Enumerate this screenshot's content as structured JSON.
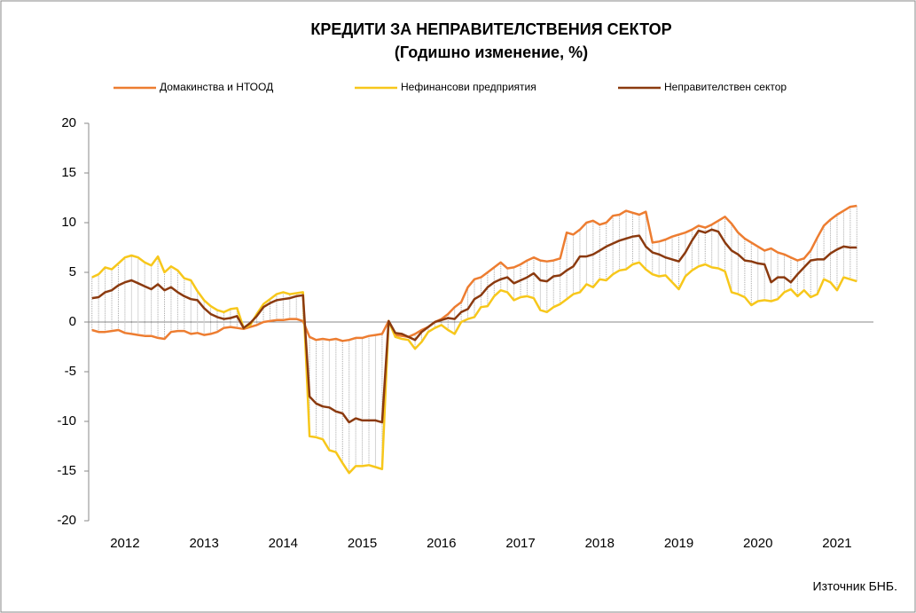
{
  "chart_data": {
    "type": "line",
    "title": "КРЕДИТИ ЗА НЕПРАВИТЕЛСТВЕНИЯ  СЕКТОР",
    "subtitle": "(Годишно  изменение, %)",
    "source": "Източник БНБ.",
    "categories": [
      null,
      null,
      null,
      null,
      null,
      "2012",
      null,
      null,
      null,
      null,
      null,
      null,
      null,
      null,
      null,
      null,
      null,
      "2013",
      null,
      null,
      null,
      null,
      null,
      null,
      null,
      null,
      null,
      null,
      null,
      "2014",
      null,
      null,
      null,
      null,
      null,
      null,
      null,
      null,
      null,
      null,
      null,
      "2015",
      null,
      null,
      null,
      null,
      null,
      null,
      null,
      null,
      null,
      null,
      null,
      "2016",
      null,
      null,
      null,
      null,
      null,
      null,
      null,
      null,
      null,
      null,
      null,
      "2017",
      null,
      null,
      null,
      null,
      null,
      null,
      null,
      null,
      null,
      null,
      null,
      "2018",
      null,
      null,
      null,
      null,
      null,
      null,
      null,
      null,
      null,
      null,
      null,
      "2019",
      null,
      null,
      null,
      null,
      null,
      null,
      null,
      null,
      null,
      null,
      null,
      "2020",
      null,
      null,
      null,
      null,
      null,
      null,
      null,
      null,
      null,
      null,
      null,
      "2021",
      null,
      null,
      null
    ],
    "series": [
      {
        "name": "Домакинства и НТООД",
        "color": "#ed7d31",
        "values": [
          -0.8,
          -1.0,
          -1.0,
          -0.9,
          -0.8,
          -1.1,
          -1.2,
          -1.3,
          -1.4,
          -1.4,
          -1.6,
          -1.7,
          -1.0,
          -0.9,
          -0.9,
          -1.2,
          -1.1,
          -1.3,
          -1.2,
          -1.0,
          -0.6,
          -0.5,
          -0.6,
          -0.7,
          -0.5,
          -0.3,
          0.0,
          0.1,
          0.2,
          0.2,
          0.3,
          0.3,
          0.1,
          -1.5,
          -1.8,
          -1.7,
          -1.8,
          -1.7,
          -1.9,
          -1.8,
          -1.6,
          -1.6,
          -1.4,
          -1.3,
          -1.2,
          0.1,
          -1.3,
          -1.4,
          -1.5,
          -1.2,
          -0.8,
          -0.5,
          0.0,
          0.3,
          0.8,
          1.5,
          2.0,
          3.5,
          4.3,
          4.5,
          5.0,
          5.5,
          6.0,
          5.4,
          5.5,
          5.8,
          6.2,
          6.5,
          6.2,
          6.1,
          6.2,
          6.4,
          9.0,
          8.8,
          9.3,
          10.0,
          10.2,
          9.8,
          10.0,
          10.7,
          10.8,
          11.2,
          11.0,
          10.8,
          11.1,
          8.0,
          8.1,
          8.3,
          8.6,
          8.8,
          9.0,
          9.3,
          9.7,
          9.5,
          9.8,
          10.2,
          10.6,
          9.9,
          9.0,
          8.4,
          8.0,
          7.6,
          7.2,
          7.4,
          7.0,
          6.8,
          6.5,
          6.2,
          6.4,
          7.2,
          8.5,
          9.7,
          10.3,
          10.8,
          11.2,
          11.6,
          11.7
        ]
      },
      {
        "name": "Нефинансови предприятия",
        "color": "#f7c71b",
        "values": [
          4.5,
          4.8,
          5.5,
          5.3,
          5.9,
          6.5,
          6.7,
          6.5,
          6.0,
          5.7,
          6.6,
          5.0,
          5.6,
          5.2,
          4.4,
          4.2,
          3.1,
          2.2,
          1.6,
          1.2,
          1.0,
          1.3,
          1.4,
          -0.6,
          -0.3,
          0.8,
          1.8,
          2.3,
          2.8,
          3.0,
          2.8,
          2.9,
          3.0,
          -11.5,
          -11.6,
          -11.8,
          -12.9,
          -13.1,
          -14.2,
          -15.2,
          -14.5,
          -14.5,
          -14.4,
          -14.6,
          -14.8,
          0.1,
          -1.5,
          -1.7,
          -1.8,
          -2.7,
          -2.0,
          -1.0,
          -0.6,
          -0.3,
          -0.8,
          -1.2,
          0.0,
          0.3,
          0.5,
          1.5,
          1.6,
          2.6,
          3.2,
          3.0,
          2.2,
          2.5,
          2.6,
          2.4,
          1.2,
          1.0,
          1.5,
          1.8,
          2.3,
          2.8,
          3.0,
          3.8,
          3.5,
          4.3,
          4.2,
          4.8,
          5.2,
          5.3,
          5.8,
          6.0,
          5.3,
          4.8,
          4.6,
          4.7,
          4.0,
          3.3,
          4.6,
          5.2,
          5.6,
          5.8,
          5.5,
          5.4,
          5.1,
          3.0,
          2.8,
          2.5,
          1.7,
          2.1,
          2.2,
          2.1,
          2.3,
          3.0,
          3.3,
          2.6,
          3.2,
          2.5,
          2.8,
          4.3,
          4.0,
          3.2,
          4.5,
          4.3,
          4.1
        ]
      },
      {
        "name": "Неправителствен сектор",
        "color": "#8b3a0f",
        "values": [
          2.4,
          2.5,
          3.0,
          3.2,
          3.7,
          4.0,
          4.2,
          3.9,
          3.6,
          3.3,
          3.8,
          3.2,
          3.5,
          3.0,
          2.6,
          2.3,
          2.2,
          1.4,
          0.8,
          0.5,
          0.3,
          0.4,
          0.6,
          -0.6,
          -0.1,
          0.6,
          1.5,
          1.9,
          2.2,
          2.3,
          2.4,
          2.6,
          2.7,
          -7.5,
          -8.2,
          -8.5,
          -8.6,
          -9.0,
          -9.2,
          -10.1,
          -9.7,
          -9.9,
          -9.9,
          -9.9,
          -10.1,
          0.1,
          -1.1,
          -1.2,
          -1.5,
          -1.8,
          -1.0,
          -0.5,
          0.0,
          0.2,
          0.4,
          0.3,
          1.0,
          1.3,
          2.3,
          2.7,
          3.5,
          4.0,
          4.3,
          4.5,
          3.9,
          4.2,
          4.5,
          4.9,
          4.2,
          4.1,
          4.6,
          4.7,
          5.2,
          5.6,
          6.6,
          6.6,
          6.8,
          7.2,
          7.6,
          7.9,
          8.2,
          8.4,
          8.6,
          8.7,
          7.6,
          7.0,
          6.8,
          6.5,
          6.3,
          6.1,
          7.0,
          8.2,
          9.2,
          9.0,
          9.3,
          9.1,
          8.0,
          7.2,
          6.8,
          6.2,
          6.1,
          5.9,
          5.8,
          4.0,
          4.5,
          4.5,
          4.0,
          4.8,
          5.5,
          6.2,
          6.3,
          6.3,
          6.9,
          7.3,
          7.6,
          7.5,
          7.5
        ]
      }
    ],
    "ylim": [
      -20,
      20
    ],
    "yticks": [
      -20,
      -15,
      -10,
      -5,
      0,
      5,
      10,
      15,
      20
    ],
    "high_low_lines": true,
    "legend": "top"
  }
}
